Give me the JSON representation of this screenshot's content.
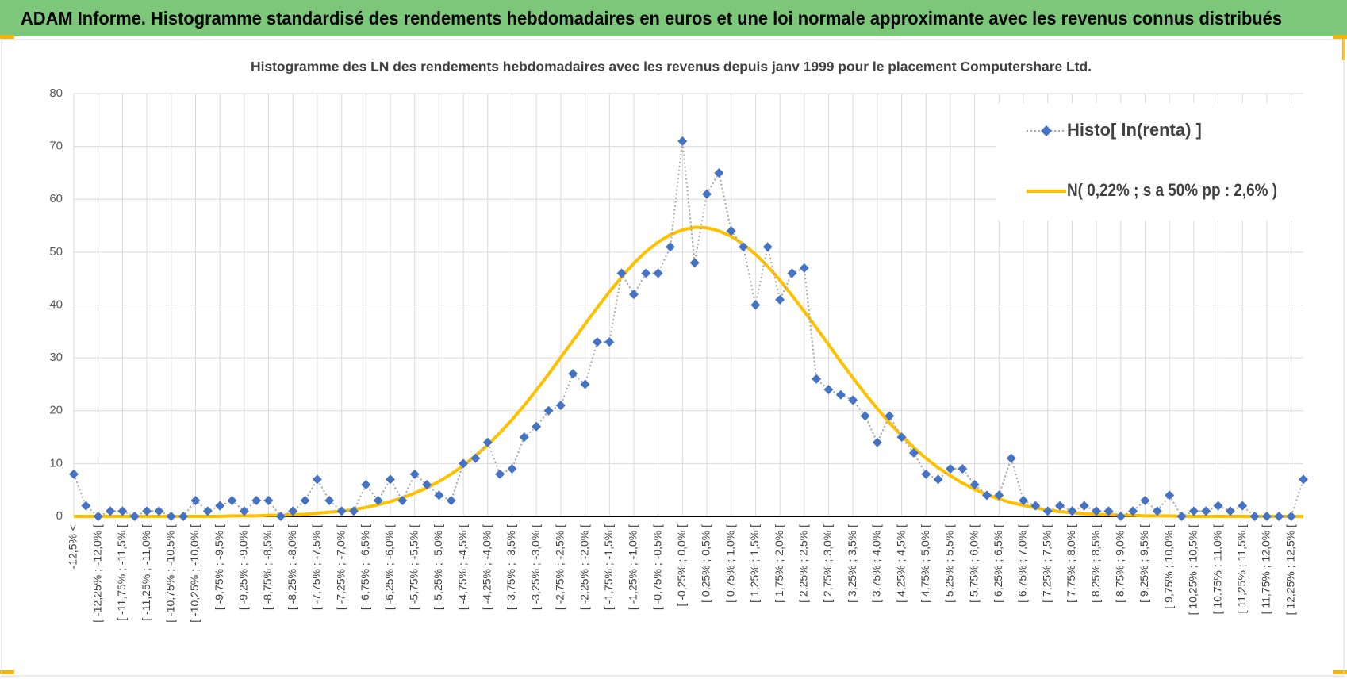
{
  "header": {
    "title": "ADAM Informe. Histogramme standardisé des rendements hebdomadaires en euros et une loi normale approximante avec les revenus connus distribués"
  },
  "chart_data": {
    "type": "line",
    "title": "Histogramme des LN des rendements hebdomadaires avec les revenus depuis janv 1999 pour le placement Computershare Ltd.",
    "categories": [
      "-12,5% <",
      null,
      "[ -12,25% ; -12,0% [",
      null,
      "[ -11,75% ; -11,5% [",
      null,
      "[ -11,25% ; -11,0% [",
      null,
      "[ -10,75% ; -10,5% [",
      null,
      "[ -10,25% ; -10,0% [",
      null,
      "[ -9,75% ; -9,5% [",
      null,
      "[ -9,25% ; -9,0% [",
      null,
      "[ -8,75% ; -8,5% [",
      null,
      "[ -8,25% ; -8,0% [",
      null,
      "[ -7,75% ; -7,5% [",
      null,
      "[ -7,25% ; -7,0% [",
      null,
      "[ -6,75% ; -6,5% [",
      null,
      "[ -6,25% ; -6,0% [",
      null,
      "[ -5,75% ; -5,5% [",
      null,
      "[ -5,25% ; -5,0% [",
      null,
      "[ -4,75% ; -4,5% [",
      null,
      "[ -4,25% ; -4,0% [",
      null,
      "[ -3,75% ; -3,5% [",
      null,
      "[ -3,25% ; -3,0% [",
      null,
      "[ -2,75% ; -2,5% [",
      null,
      "[ -2,25% ; -2,0% [",
      null,
      "[ -1,75% ; -1,5% [",
      null,
      "[ -1,25% ; -1,0% [",
      null,
      "[ -0,75% ; -0,5% [",
      null,
      "[ -0,25% ; 0,0% [",
      null,
      "[ 0,25% ; 0,5% [",
      null,
      "[ 0,75% ; 1,0% [",
      null,
      "[ 1,25% ; 1,5% [",
      null,
      "[ 1,75% ; 2,0% [",
      null,
      "[ 2,25% ; 2,5% [",
      null,
      "[ 2,75% ; 3,0% [",
      null,
      "[ 3,25% ; 3,5% [",
      null,
      "[ 3,75% ; 4,0% [",
      null,
      "[ 4,25% ; 4,5% [",
      null,
      "[ 4,75% ; 5,0% [",
      null,
      "[ 5,25% ; 5,5% [",
      null,
      "[ 5,75% ; 6,0% [",
      null,
      "[ 6,25% ; 6,5% [",
      null,
      "[ 6,75% ; 7,0% [",
      null,
      "[ 7,25% ; 7,5% [",
      null,
      "[ 7,75% ; 8,0% [",
      null,
      "[ 8,25% ; 8,5% [",
      null,
      "[ 8,75% ; 9,0% [",
      null,
      "[ 9,25% ; 9,5% [",
      null,
      "[ 9,75% ; 10,0% [",
      null,
      "[ 10,25% ; 10,5% [",
      null,
      "[ 10,75% ; 11,0% [",
      null,
      "[ 11,25% ; 11,5% [",
      null,
      "[ 11,75% ; 12,0% [",
      null,
      "[ 12,25% ; 12,5% [",
      null
    ],
    "series": [
      {
        "name": "Histo[ ln(renta) ]",
        "color": "#4472c4",
        "line_color": "#a6a6a6",
        "values": [
          8,
          2,
          0,
          1,
          1,
          0,
          1,
          1,
          0,
          0,
          3,
          1,
          2,
          3,
          1,
          3,
          3,
          0,
          1,
          3,
          7,
          3,
          1,
          1,
          6,
          3,
          7,
          3,
          8,
          6,
          4,
          3,
          10,
          11,
          14,
          8,
          9,
          15,
          17,
          20,
          21,
          27,
          25,
          33,
          33,
          46,
          42,
          46,
          46,
          51,
          71,
          48,
          61,
          65,
          54,
          51,
          40,
          51,
          41,
          46,
          47,
          26,
          24,
          23,
          22,
          19,
          14,
          19,
          15,
          12,
          8,
          7,
          9,
          9,
          6,
          4,
          4,
          11,
          3,
          2,
          1,
          2,
          1,
          2,
          1,
          1,
          0,
          1,
          3,
          1,
          4,
          0,
          1,
          1,
          2,
          1,
          2,
          0,
          0,
          0,
          0,
          7
        ]
      },
      {
        "name": "N( 0,22% ; s a 50% pp : 2,6% )",
        "color": "#ffc000",
        "values": [
          0,
          0,
          0,
          0,
          0,
          0,
          0,
          0,
          0,
          0,
          0,
          0,
          0,
          0.1,
          0.1,
          0.1,
          0.2,
          0.2,
          0.3,
          0.4,
          0.6,
          0.8,
          1.0,
          1.3,
          1.7,
          2.2,
          2.8,
          3.5,
          4.4,
          5.4,
          6.6,
          8.0,
          9.6,
          11.5,
          13.5,
          15.8,
          18.3,
          21.0,
          23.9,
          26.9,
          30.1,
          33.2,
          36.4,
          39.5,
          42.5,
          45.3,
          47.9,
          50.1,
          51.9,
          53.3,
          54.2,
          54.7,
          54.6,
          54.0,
          53.0,
          51.5,
          49.6,
          47.3,
          44.7,
          41.8,
          38.8,
          35.7,
          32.5,
          29.3,
          26.2,
          23.2,
          20.4,
          17.7,
          15.3,
          13.0,
          11.0,
          9.2,
          7.7,
          6.3,
          5.1,
          4.1,
          3.3,
          2.6,
          2.1,
          1.6,
          1.2,
          0.9,
          0.7,
          0.5,
          0.4,
          0.3,
          0.2,
          0.2,
          0.1,
          0.1,
          0.1,
          0,
          0,
          0,
          0,
          0,
          0,
          0,
          0,
          0,
          0,
          0
        ]
      }
    ],
    "ylim": [
      0,
      80
    ],
    "yticks": [
      0,
      10,
      20,
      30,
      40,
      50,
      60,
      70,
      80
    ],
    "grid": true,
    "legend": "upper right"
  }
}
